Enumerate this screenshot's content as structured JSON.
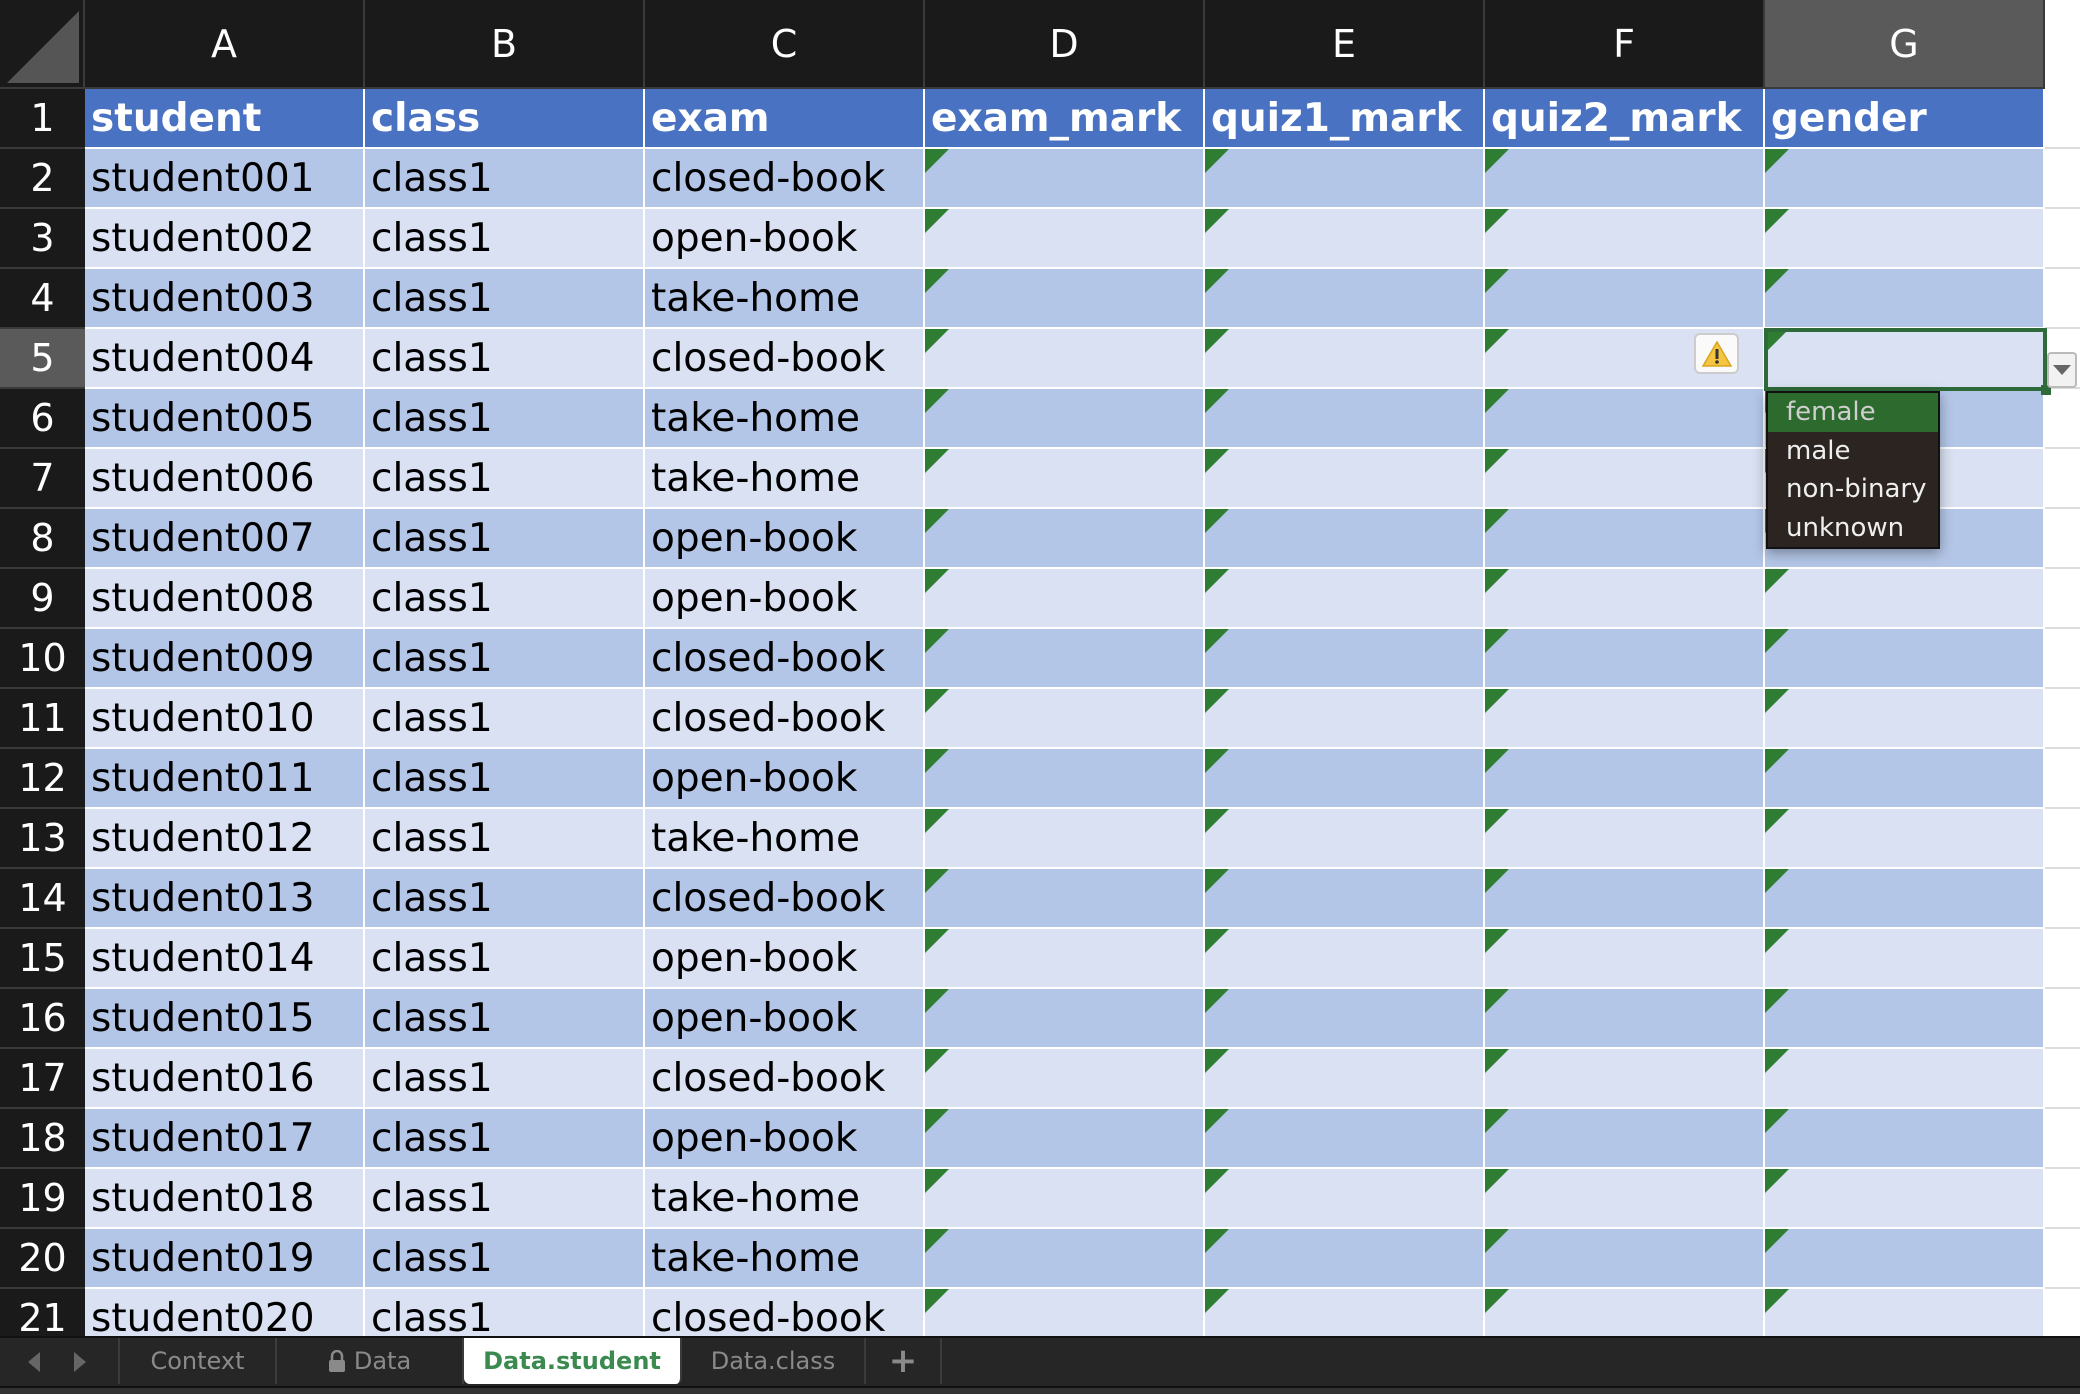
{
  "columns": [
    "A",
    "B",
    "C",
    "D",
    "E",
    "F",
    "G"
  ],
  "selected_column": "G",
  "selected_row": 5,
  "header_row": [
    "student",
    "class",
    "exam",
    "exam_mark",
    "quiz1_mark",
    "quiz2_mark",
    "gender"
  ],
  "rows": [
    [
      "student001",
      "class1",
      "closed-book"
    ],
    [
      "student002",
      "class1",
      "open-book"
    ],
    [
      "student003",
      "class1",
      "take-home"
    ],
    [
      "student004",
      "class1",
      "closed-book"
    ],
    [
      "student005",
      "class1",
      "take-home"
    ],
    [
      "student006",
      "class1",
      "take-home"
    ],
    [
      "student007",
      "class1",
      "open-book"
    ],
    [
      "student008",
      "class1",
      "open-book"
    ],
    [
      "student009",
      "class1",
      "closed-book"
    ],
    [
      "student010",
      "class1",
      "closed-book"
    ],
    [
      "student011",
      "class1",
      "open-book"
    ],
    [
      "student012",
      "class1",
      "take-home"
    ],
    [
      "student013",
      "class1",
      "closed-book"
    ],
    [
      "student014",
      "class1",
      "open-book"
    ],
    [
      "student015",
      "class1",
      "open-book"
    ],
    [
      "student016",
      "class1",
      "closed-book"
    ],
    [
      "student017",
      "class1",
      "open-book"
    ],
    [
      "student018",
      "class1",
      "take-home"
    ],
    [
      "student019",
      "class1",
      "take-home"
    ],
    [
      "student020",
      "class1",
      "closed-book"
    ]
  ],
  "dropdown": {
    "options": [
      "female",
      "male",
      "non-binary",
      "unknown"
    ],
    "highlighted": "female"
  },
  "tabs": [
    {
      "label": "Context",
      "locked": false
    },
    {
      "label": "Data",
      "locked": true
    },
    {
      "label": "Data.student",
      "active": true
    },
    {
      "label": "Data.class"
    }
  ],
  "add_sheet_label": "+",
  "colors": {
    "header_fill": "#4a72c2",
    "band_dark": "#b4c6e7",
    "band_light": "#d9e1f2",
    "selection": "#2f6b3a",
    "active_tab_text": "#3b8a4f"
  }
}
